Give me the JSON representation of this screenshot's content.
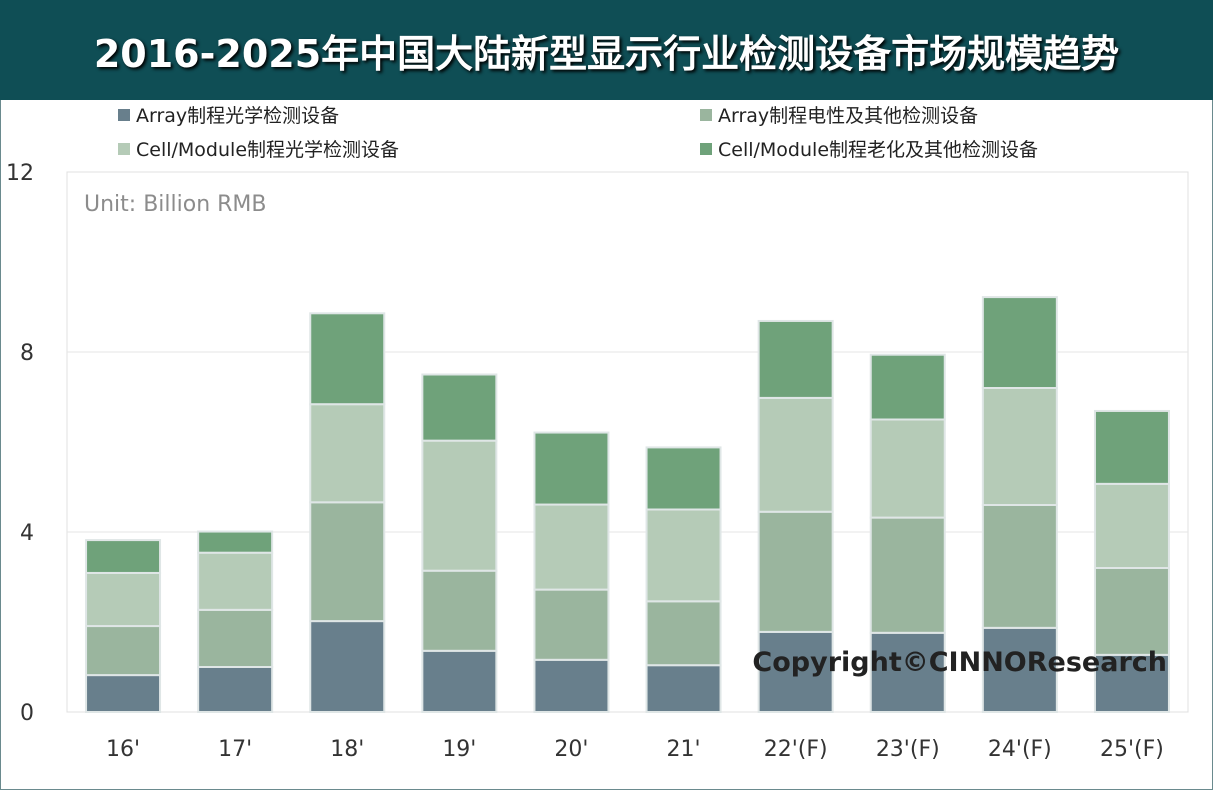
{
  "chart_data": {
    "type": "bar",
    "stacked": true,
    "title": "2016-2025年中国大陆新型显示行业检测设备市场规模趋势",
    "unit_label": "Unit: Billion RMB",
    "watermark": "Copyright©CINNOResearch",
    "categories": [
      "16'",
      "17'",
      "18'",
      "19'",
      "20'",
      "21'",
      "22'(F)",
      "23'(F)",
      "24'(F)",
      "25'(F)"
    ],
    "ylim": [
      0,
      12
    ],
    "yticks": [
      0,
      4,
      8,
      12
    ],
    "grid": true,
    "legend_position": "top",
    "series": [
      {
        "name": "Array制程光学检测设备",
        "color": "#687f8c",
        "values": [
          0.82,
          1.0,
          2.02,
          1.36,
          1.16,
          1.04,
          1.78,
          1.76,
          1.87,
          1.27
        ]
      },
      {
        "name": "Array制程电性及其他检测设备",
        "color": "#9ab59e",
        "values": [
          1.09,
          1.27,
          2.64,
          1.78,
          1.56,
          1.42,
          2.67,
          2.56,
          2.73,
          1.93
        ]
      },
      {
        "name": "Cell/Module制程光学检测设备",
        "color": "#b5cbb7",
        "values": [
          1.18,
          1.27,
          2.18,
          2.89,
          1.89,
          2.04,
          2.53,
          2.18,
          2.6,
          1.87
        ]
      },
      {
        "name": "Cell/Module制程老化及其他检测设备",
        "color": "#6fa27a",
        "values": [
          0.73,
          0.47,
          2.02,
          1.47,
          1.6,
          1.38,
          1.71,
          1.44,
          2.02,
          1.62
        ]
      }
    ]
  }
}
